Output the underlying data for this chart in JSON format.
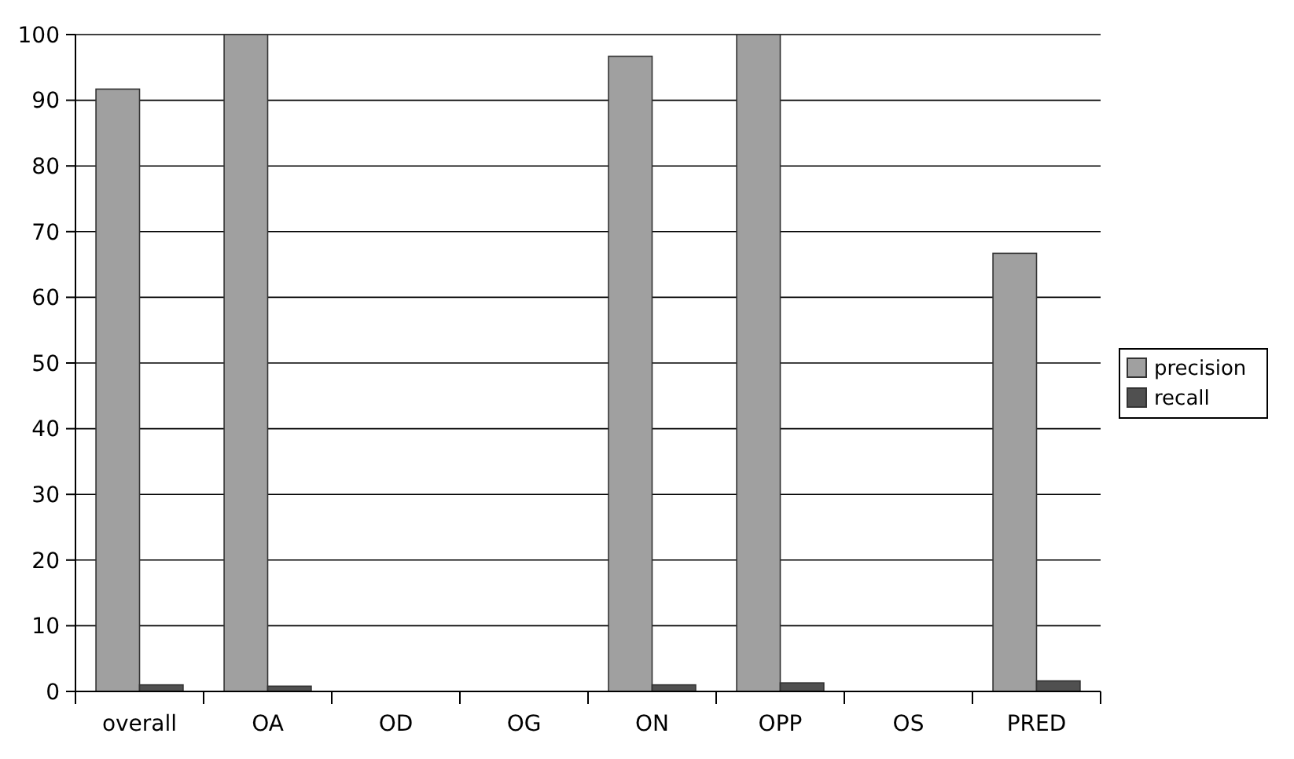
{
  "chart_data": {
    "type": "bar",
    "categories": [
      "overall",
      "OA",
      "OD",
      "OG",
      "ON",
      "OPP",
      "OS",
      "PRED"
    ],
    "series": [
      {
        "name": "precision",
        "color": "#a0a0a0",
        "values": [
          91.7,
          100,
          0,
          0,
          96.7,
          100,
          0,
          66.7
        ]
      },
      {
        "name": "recall",
        "color": "#505050",
        "values": [
          1,
          0.8,
          0,
          0,
          1,
          1.3,
          0,
          1.6
        ]
      }
    ],
    "ylim": [
      0,
      100
    ],
    "yticks": [
      0,
      10,
      20,
      30,
      40,
      50,
      60,
      70,
      80,
      90,
      100
    ],
    "grid": "y",
    "legend": "right"
  }
}
